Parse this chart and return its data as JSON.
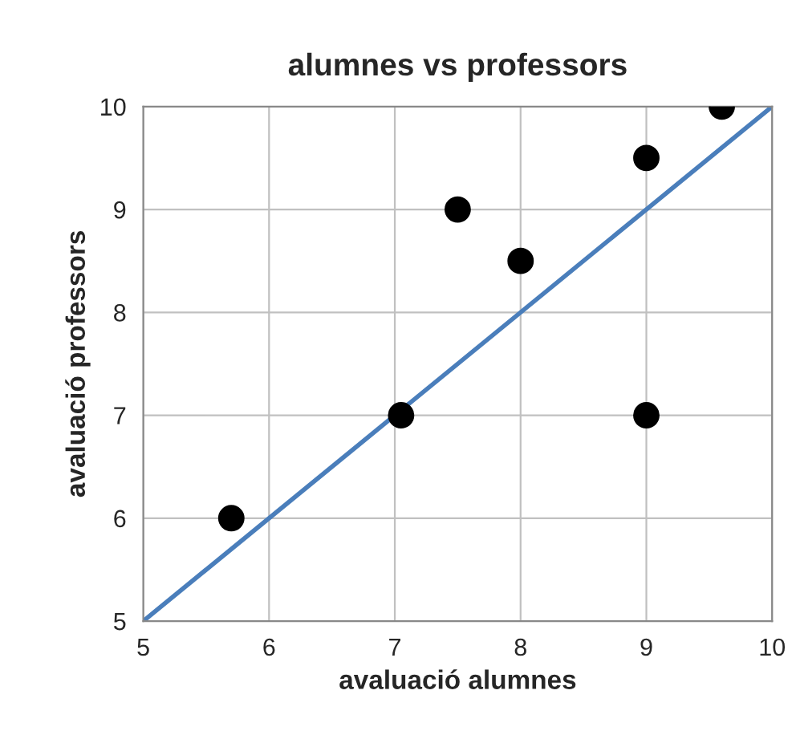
{
  "chart_data": {
    "type": "scatter",
    "title": "alumnes vs professors",
    "xlabel": "avaluació alumnes",
    "ylabel": "avaluació professors",
    "x": [
      5.7,
      7.05,
      7.5,
      8.0,
      9.0,
      9.0,
      9.6
    ],
    "series": [
      {
        "color": "#000000",
        "values": [
          6,
          7,
          9,
          8.5,
          9.5,
          7,
          10
        ],
        "marker": "circle"
      },
      {
        "type": "line",
        "color": "#4a7ebb",
        "x": [
          5,
          10
        ],
        "values": [
          5,
          10
        ],
        "marker": "none"
      }
    ],
    "xlim": [
      5,
      10
    ],
    "ylim": [
      5,
      10
    ],
    "xticks": [
      5,
      6,
      7,
      8,
      9,
      10
    ],
    "yticks": [
      5,
      6,
      7,
      8,
      9,
      10
    ],
    "grid": true,
    "legend": false
  }
}
